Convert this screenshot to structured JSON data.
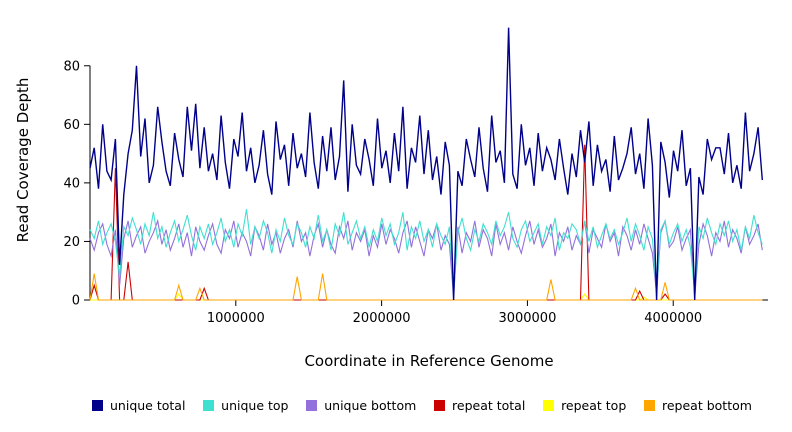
{
  "chart_data": {
    "type": "line",
    "title": "",
    "xlabel": "Coordinate in Reference Genome",
    "ylabel": "Read Coverage Depth",
    "xlim": [
      0,
      4650000
    ],
    "ylim": [
      0,
      97
    ],
    "grid": false,
    "legend_position": "bottom",
    "x_ticks": [
      {
        "value": 1000000,
        "label": "1000000"
      },
      {
        "value": 2000000,
        "label": "2000000"
      },
      {
        "value": 3000000,
        "label": "3000000"
      },
      {
        "value": 4000000,
        "label": "4000000"
      }
    ],
    "y_ticks": [
      {
        "value": 0,
        "label": "0"
      },
      {
        "value": 20,
        "label": "20"
      },
      {
        "value": 40,
        "label": "40"
      },
      {
        "value": 60,
        "label": "60"
      },
      {
        "value": 80,
        "label": "80"
      }
    ],
    "x_start": 0,
    "x_step": 29000,
    "n_points": 160,
    "draw_order": [
      4,
      3,
      5,
      2,
      1,
      0
    ],
    "series": [
      {
        "name": "unique total",
        "color": "#00008B",
        "width": 1.4,
        "values": [
          45,
          52,
          38,
          60,
          44,
          41,
          55,
          12,
          36,
          50,
          58,
          80,
          49,
          62,
          40,
          46,
          66,
          54,
          44,
          39,
          57,
          48,
          42,
          66,
          51,
          67,
          45,
          59,
          44,
          50,
          41,
          63,
          47,
          38,
          55,
          49,
          64,
          44,
          52,
          40,
          46,
          58,
          43,
          36,
          61,
          48,
          53,
          39,
          57,
          45,
          50,
          42,
          64,
          47,
          38,
          56,
          44,
          59,
          41,
          49,
          75,
          37,
          60,
          46,
          43,
          55,
          48,
          39,
          62,
          45,
          51,
          40,
          57,
          44,
          66,
          38,
          52,
          47,
          63,
          43,
          58,
          41,
          49,
          36,
          54,
          46,
          0,
          44,
          39,
          55,
          48,
          42,
          59,
          45,
          37,
          63,
          47,
          51,
          40,
          93,
          43,
          38,
          60,
          46,
          52,
          39,
          57,
          44,
          52,
          48,
          41,
          55,
          45,
          36,
          50,
          42,
          58,
          47,
          61,
          39,
          53,
          44,
          48,
          37,
          56,
          41,
          45,
          50,
          59,
          43,
          50,
          38,
          62,
          46,
          0,
          54,
          47,
          35,
          51,
          44,
          58,
          39,
          45,
          0,
          42,
          36,
          55,
          48,
          52,
          52,
          43,
          57,
          40,
          46,
          38,
          64,
          44,
          50,
          59,
          41
        ]
      },
      {
        "name": "unique top",
        "color": "#40E0D0",
        "width": 1.1,
        "values": [
          24,
          21,
          27,
          19,
          23,
          26,
          20,
          8,
          25,
          22,
          28,
          24,
          19,
          26,
          22,
          30,
          21,
          25,
          18,
          23,
          27,
          20,
          24,
          29,
          22,
          17,
          25,
          21,
          26,
          19,
          23,
          28,
          20,
          24,
          18,
          26,
          22,
          31,
          19,
          25,
          21,
          27,
          23,
          16,
          24,
          20,
          28,
          22,
          19,
          26,
          23,
          18,
          25,
          21,
          29,
          20,
          24,
          17,
          26,
          22,
          30,
          19,
          23,
          27,
          21,
          25,
          18,
          24,
          20,
          28,
          22,
          26,
          19,
          23,
          30,
          17,
          25,
          21,
          27,
          20,
          24,
          18,
          26,
          22,
          19,
          25,
          2,
          23,
          28,
          21,
          17,
          24,
          20,
          26,
          23,
          19,
          27,
          22,
          25,
          30,
          21,
          18,
          24,
          27,
          20,
          23,
          26,
          19,
          25,
          22,
          28,
          17,
          23,
          21,
          26,
          24,
          19,
          27,
          20,
          25,
          18,
          22,
          26,
          21,
          24,
          19,
          23,
          28,
          20,
          26,
          22,
          17,
          25,
          21,
          3,
          24,
          27,
          19,
          23,
          26,
          20,
          24,
          18,
          2,
          25,
          21,
          28,
          23,
          19,
          26,
          22,
          27,
          20,
          24,
          17,
          25,
          21,
          29,
          23,
          19
        ]
      },
      {
        "name": "unique bottom",
        "color": "#9370DB",
        "width": 1.1,
        "values": [
          21,
          17,
          23,
          26,
          19,
          15,
          24,
          5,
          21,
          27,
          18,
          22,
          25,
          16,
          20,
          23,
          27,
          19,
          24,
          17,
          21,
          26,
          18,
          23,
          15,
          25,
          20,
          17,
          22,
          26,
          19,
          16,
          24,
          21,
          27,
          18,
          23,
          20,
          15,
          25,
          22,
          17,
          26,
          19,
          23,
          16,
          21,
          24,
          18,
          27,
          20,
          23,
          15,
          22,
          26,
          18,
          24,
          19,
          16,
          25,
          21,
          27,
          17,
          23,
          20,
          24,
          15,
          22,
          18,
          26,
          19,
          24,
          21,
          16,
          23,
          27,
          18,
          25,
          20,
          15,
          24,
          21,
          26,
          17,
          22,
          19,
          1,
          25,
          16,
          23,
          20,
          27,
          18,
          24,
          21,
          15,
          26,
          19,
          23,
          17,
          25,
          20,
          16,
          22,
          27,
          19,
          24,
          18,
          21,
          26,
          15,
          23,
          20,
          25,
          17,
          22,
          19,
          27,
          16,
          24,
          21,
          18,
          26,
          20,
          23,
          15,
          25,
          22,
          17,
          24,
          19,
          26,
          21,
          16,
          2,
          23,
          27,
          18,
          20,
          25,
          17,
          21,
          24,
          1,
          19,
          26,
          22,
          15,
          23,
          20,
          27,
          18,
          24,
          21,
          16,
          25,
          19,
          22,
          26,
          17
        ]
      },
      {
        "name": "repeat total",
        "color": "#CC0000",
        "width": 1.1,
        "baseline": 0,
        "points": [
          {
            "i": 1,
            "v": 5
          },
          {
            "i": 6,
            "v": 45
          },
          {
            "i": 9,
            "v": 13
          },
          {
            "i": 27,
            "v": 4
          },
          {
            "i": 117,
            "v": 53
          },
          {
            "i": 130,
            "v": 3
          },
          {
            "i": 136,
            "v": 2
          }
        ]
      },
      {
        "name": "repeat top",
        "color": "#FFFF00",
        "width": 1.1,
        "baseline": 0,
        "points": [
          {
            "i": 21,
            "v": 2
          },
          {
            "i": 117,
            "v": 2
          },
          {
            "i": 131,
            "v": 1
          }
        ]
      },
      {
        "name": "repeat bottom",
        "color": "#FFA500",
        "width": 1.1,
        "baseline": 0,
        "points": [
          {
            "i": 1,
            "v": 9
          },
          {
            "i": 21,
            "v": 5
          },
          {
            "i": 26,
            "v": 4
          },
          {
            "i": 49,
            "v": 8
          },
          {
            "i": 55,
            "v": 9
          },
          {
            "i": 109,
            "v": 7
          },
          {
            "i": 129,
            "v": 4
          },
          {
            "i": 136,
            "v": 6
          }
        ]
      }
    ]
  }
}
